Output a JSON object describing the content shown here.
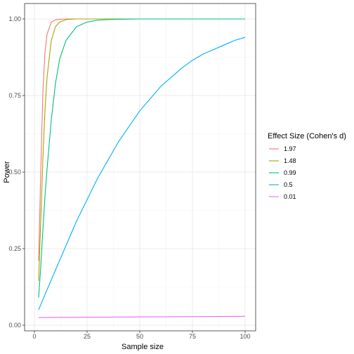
{
  "chart_data": {
    "type": "line",
    "xlabel": "Sample size",
    "ylabel": "Power",
    "xlim": [
      2,
      100
    ],
    "ylim": [
      0,
      1
    ],
    "x_ticks": [
      0,
      25,
      50,
      75,
      100
    ],
    "y_ticks": [
      0.0,
      0.25,
      0.5,
      0.75,
      1.0
    ],
    "x_tick_labels": [
      "0",
      "25",
      "50",
      "75",
      "100"
    ],
    "y_tick_labels": [
      "0.00",
      "0.25",
      "0.50",
      "0.75",
      "1.00"
    ],
    "grid": true,
    "legend": {
      "title": "Effect Size (Cohen's d)",
      "placement": "right"
    },
    "series": [
      {
        "name": "1.97",
        "color": "#F8766D",
        "x": [
          2,
          3,
          4,
          5,
          6,
          8,
          10,
          12,
          15,
          20,
          30,
          50,
          100
        ],
        "y": [
          0.21,
          0.5,
          0.76,
          0.89,
          0.95,
          0.99,
          0.997,
          0.999,
          1.0,
          1.0,
          1.0,
          1.0,
          1.0
        ]
      },
      {
        "name": "1.48",
        "color": "#A3A500",
        "x": [
          2,
          3,
          4,
          5,
          6,
          8,
          10,
          12,
          15,
          20,
          25,
          30,
          50,
          100
        ],
        "y": [
          0.145,
          0.34,
          0.54,
          0.7,
          0.81,
          0.93,
          0.975,
          0.99,
          0.998,
          1.0,
          1.0,
          1.0,
          1.0,
          1.0
        ]
      },
      {
        "name": "0.99",
        "color": "#00BF7D",
        "x": [
          2,
          3,
          4,
          5,
          6,
          8,
          10,
          12,
          15,
          20,
          25,
          30,
          35,
          40,
          50,
          60,
          80,
          100
        ],
        "y": [
          0.09,
          0.19,
          0.31,
          0.42,
          0.51,
          0.67,
          0.79,
          0.87,
          0.93,
          0.975,
          0.99,
          0.996,
          0.998,
          0.999,
          1.0,
          1.0,
          1.0,
          1.0
        ]
      },
      {
        "name": "0.5",
        "color": "#00B0F6",
        "x": [
          2,
          5,
          10,
          15,
          20,
          25,
          30,
          35,
          40,
          45,
          50,
          55,
          60,
          65,
          70,
          75,
          80,
          85,
          90,
          95,
          100
        ],
        "y": [
          0.05,
          0.1,
          0.18,
          0.26,
          0.34,
          0.41,
          0.48,
          0.54,
          0.6,
          0.65,
          0.7,
          0.74,
          0.78,
          0.81,
          0.84,
          0.865,
          0.885,
          0.9,
          0.915,
          0.93,
          0.94
        ]
      },
      {
        "name": "0.01",
        "color": "#E76BF3",
        "x": [
          2,
          25,
          50,
          75,
          100
        ],
        "y": [
          0.025,
          0.026,
          0.027,
          0.028,
          0.029
        ]
      }
    ]
  }
}
